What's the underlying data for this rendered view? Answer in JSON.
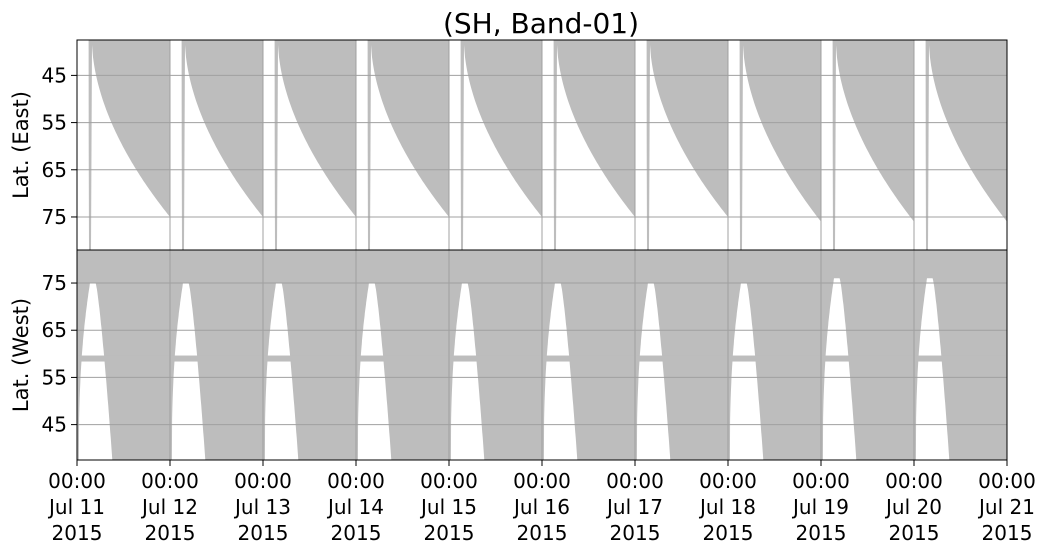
{
  "chart_data": {
    "type": "area",
    "title": "(SH, Band-01)",
    "fill_color": "#bdbdbd",
    "grid": true,
    "x_ticks": [
      {
        "time": "00:00",
        "date": "Jul 11",
        "year": "2015"
      },
      {
        "time": "00:00",
        "date": "Jul 12",
        "year": "2015"
      },
      {
        "time": "00:00",
        "date": "Jul 13",
        "year": "2015"
      },
      {
        "time": "00:00",
        "date": "Jul 14",
        "year": "2015"
      },
      {
        "time": "00:00",
        "date": "Jul 15",
        "year": "2015"
      },
      {
        "time": "00:00",
        "date": "Jul 16",
        "year": "2015"
      },
      {
        "time": "00:00",
        "date": "Jul 17",
        "year": "2015"
      },
      {
        "time": "00:00",
        "date": "Jul 18",
        "year": "2015"
      },
      {
        "time": "00:00",
        "date": "Jul 19",
        "year": "2015"
      },
      {
        "time": "00:00",
        "date": "Jul 20",
        "year": "2015"
      },
      {
        "time": "00:00",
        "date": "Jul 21",
        "year": "2015"
      }
    ],
    "xlim": [
      "2015-07-11 00:00",
      "2015-07-21 00:00"
    ],
    "panels": [
      {
        "ylabel": "Lat. (East)",
        "y_ticks": [
          45,
          55,
          65,
          75
        ],
        "ylim": [
          37.5,
          82.0
        ],
        "y_inverted": true,
        "boundary_min_lat": [
          75,
          75,
          75,
          75,
          75,
          75,
          75,
          76,
          76,
          76
        ],
        "description_series": "Covered latitude boundary per day (lowest edge of gray band)"
      },
      {
        "ylabel": "Lat. (West)",
        "y_ticks": [
          45,
          55,
          65,
          75
        ],
        "ylim": [
          37.5,
          82.0
        ],
        "y_inverted": false,
        "hole_top_lat": [
          75,
          75,
          75,
          75,
          75,
          75,
          75,
          75,
          76,
          76
        ],
        "strip_lat": 59
      }
    ]
  }
}
